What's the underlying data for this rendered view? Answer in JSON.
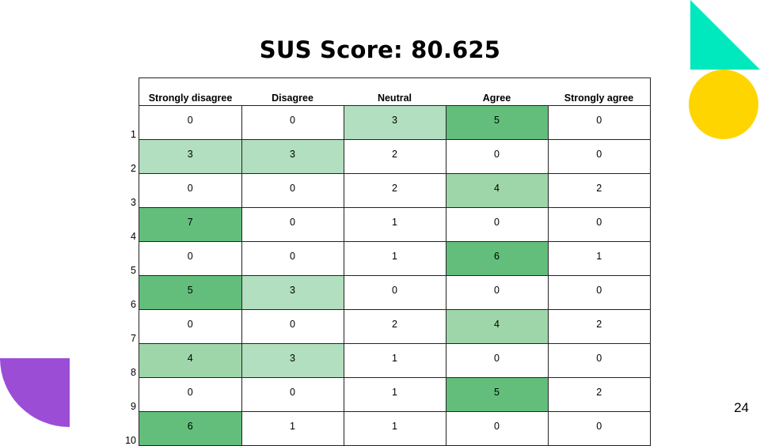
{
  "slide": {
    "title": "SUS Score: 80.625",
    "page_number": "24"
  },
  "colors": {
    "teal": "#00E8BE",
    "yellow": "#FFD500",
    "purple": "#9B4DD6",
    "heat_light": "#B2DFBF",
    "heat_medium": "#9ED6A9",
    "heat_dark": "#63BE7B"
  },
  "table": {
    "columns": [
      "Strongly disagree",
      "Disagree",
      "Neutral",
      "Agree",
      "Strongly agree"
    ],
    "rows": [
      {
        "label": "1",
        "values": [
          "0",
          "0",
          "3",
          "5",
          "0"
        ]
      },
      {
        "label": "2",
        "values": [
          "3",
          "3",
          "2",
          "0",
          "0"
        ]
      },
      {
        "label": "3",
        "values": [
          "0",
          "0",
          "2",
          "4",
          "2"
        ]
      },
      {
        "label": "4",
        "values": [
          "7",
          "0",
          "1",
          "0",
          "0"
        ]
      },
      {
        "label": "5",
        "values": [
          "0",
          "0",
          "1",
          "6",
          "1"
        ]
      },
      {
        "label": "6",
        "values": [
          "5",
          "3",
          "0",
          "0",
          "0"
        ]
      },
      {
        "label": "7",
        "values": [
          "0",
          "0",
          "2",
          "4",
          "2"
        ]
      },
      {
        "label": "8",
        "values": [
          "4",
          "3",
          "1",
          "0",
          "0"
        ]
      },
      {
        "label": "9",
        "values": [
          "0",
          "0",
          "1",
          "5",
          "2"
        ]
      },
      {
        "label": "10",
        "values": [
          "6",
          "1",
          "1",
          "0",
          "0"
        ]
      }
    ]
  }
}
